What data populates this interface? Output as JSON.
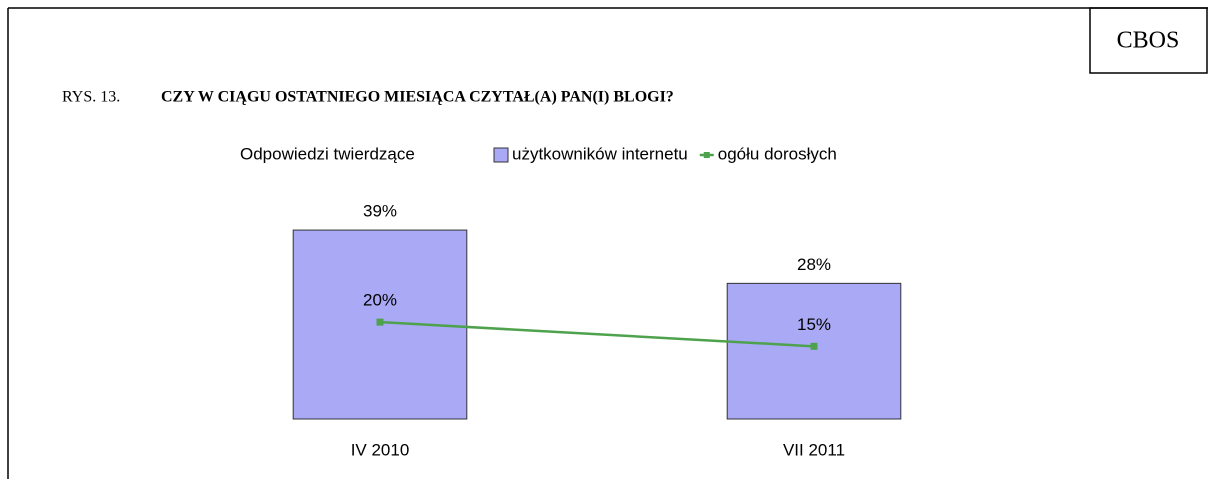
{
  "chart_data": {
    "type": "bar",
    "badge": "CBOS",
    "figure_label": "RYS. 13.",
    "title": "CZY W CIĄGU OSTATNIEGO MIESIĄCA CZYTAŁ(A) PAN(I) BLOGI?",
    "legend_title": "Odpowiedzi twierdzące",
    "categories": [
      "IV 2010",
      "VII 2011"
    ],
    "series": [
      {
        "name": "użytkowników internetu",
        "type": "bar",
        "color": "#a9a9f5",
        "values": [
          39,
          28
        ],
        "value_labels": [
          "39%",
          "28%"
        ]
      },
      {
        "name": "ogółu dorosłych",
        "type": "line",
        "color": "#4ea24e",
        "values": [
          20,
          15
        ],
        "value_labels": [
          "20%",
          "15%"
        ]
      }
    ],
    "ylim": [
      0,
      45
    ],
    "grid": false
  }
}
